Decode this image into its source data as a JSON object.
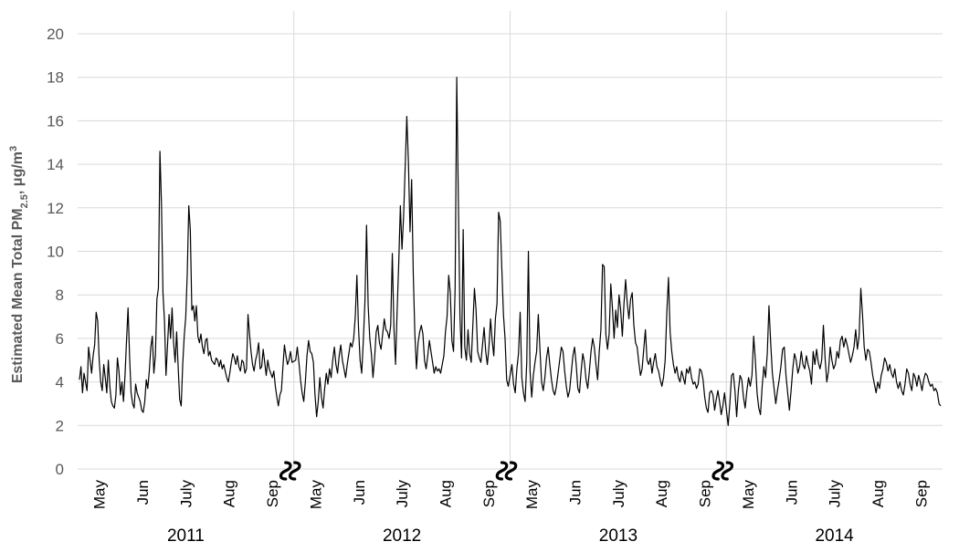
{
  "chart_data": {
    "type": "line",
    "title": "",
    "ylabel_prefix": "Estimated Mean Total PM",
    "ylabel_subscript": "2.5",
    "ylabel_unit": ", μg/m",
    "ylabel_superscript": "3",
    "ylim": [
      0,
      20
    ],
    "yticks": [
      0,
      2,
      4,
      6,
      8,
      10,
      12,
      14,
      16,
      18,
      20
    ],
    "grid": "horizontal",
    "legend": "none",
    "series_color": "#000000",
    "segments": [
      {
        "year": "2011",
        "months": [
          "May",
          "Jun",
          "July",
          "Aug",
          "Sep"
        ],
        "values": [
          4.1,
          4.7,
          3.5,
          4.4,
          4.0,
          3.6,
          5.6,
          5.0,
          4.4,
          5.2,
          5.7,
          7.2,
          6.8,
          5.0,
          4.0,
          3.6,
          4.8,
          4.2,
          3.5,
          5.0,
          3.8,
          3.1,
          2.9,
          2.8,
          3.4,
          5.1,
          4.5,
          3.4,
          4.0,
          3.1,
          4.3,
          5.9,
          7.4,
          5.2,
          3.5,
          3.0,
          2.8,
          3.9,
          3.5,
          3.3,
          3.1,
          2.7,
          2.6,
          3.1,
          4.1,
          3.7,
          4.5,
          5.6,
          6.1,
          4.4,
          5.2,
          7.8,
          8.3,
          14.6,
          12.2,
          8.1,
          6.8,
          4.3,
          5.7,
          7.1,
          6.0,
          7.4,
          5.8,
          4.9,
          6.3,
          4.7,
          3.2,
          2.9,
          4.8,
          6.1,
          7.0,
          9.0,
          12.1,
          11.0,
          7.3,
          7.5,
          6.8,
          7.5,
          6.1,
          5.8,
          6.2,
          5.6,
          5.3,
          5.9,
          6.0,
          5.2,
          5.4,
          5.0,
          4.9,
          4.8,
          5.1,
          5.0,
          4.7,
          5.0,
          4.6,
          4.8,
          4.5,
          4.2,
          4.0,
          4.4,
          4.9,
          5.3,
          5.1,
          4.8,
          5.2,
          4.7,
          4.5,
          5.0,
          4.9,
          4.4,
          4.6,
          7.1,
          6.2,
          5.4,
          4.8,
          4.5,
          5.0,
          5.3,
          5.8,
          4.6,
          4.7,
          5.5,
          4.9,
          4.3,
          5.0,
          4.6,
          4.4,
          4.2,
          4.5,
          3.8,
          3.3,
          2.9,
          3.4,
          3.6,
          4.7,
          5.7,
          5.2,
          4.8,
          5.0,
          5.4,
          4.9
        ]
      },
      {
        "year": "2012",
        "months": [
          "May",
          "Jun",
          "July",
          "Aug",
          "Sep"
        ],
        "values": [
          5.0,
          5.6,
          4.9,
          4.1,
          3.5,
          3.1,
          4.0,
          5.2,
          5.9,
          5.4,
          5.3,
          4.9,
          3.4,
          2.4,
          3.1,
          4.2,
          3.3,
          2.8,
          3.7,
          4.4,
          3.9,
          4.6,
          4.2,
          5.0,
          5.6,
          4.8,
          4.4,
          5.2,
          5.7,
          5.0,
          4.6,
          4.2,
          4.8,
          5.3,
          5.8,
          5.6,
          6.0,
          7.0,
          8.9,
          6.5,
          5.0,
          4.4,
          5.9,
          7.7,
          11.2,
          7.5,
          6.0,
          5.3,
          4.2,
          5.1,
          6.3,
          6.6,
          5.8,
          5.5,
          6.2,
          6.9,
          6.4,
          6.3,
          6.0,
          6.6,
          9.9,
          6.5,
          4.8,
          7.3,
          9.5,
          12.1,
          10.1,
          11.6,
          13.9,
          16.2,
          14.1,
          10.9,
          13.3,
          9.0,
          6.2,
          4.6,
          5.8,
          6.3,
          6.6,
          6.2,
          5.0,
          4.6,
          5.2,
          5.9,
          5.4,
          4.9,
          4.4,
          4.7,
          4.5,
          4.6,
          4.4,
          4.8,
          5.2,
          6.3,
          7.0,
          8.9,
          8.1,
          5.9,
          5.4,
          8.3,
          18.0,
          12.4,
          7.0,
          5.1,
          11.0,
          5.6,
          5.0,
          6.4,
          5.3,
          4.9,
          6.6,
          8.3,
          7.3,
          5.4,
          5.1,
          4.9,
          5.7,
          6.5,
          5.4,
          4.8,
          5.6,
          6.9,
          5.9,
          5.2,
          6.9,
          7.6,
          11.8,
          11.4,
          9.2,
          7.1,
          6.0,
          4.1,
          3.8
        ]
      },
      {
        "year": "2013",
        "months": [
          "May",
          "Jun",
          "July",
          "Aug",
          "Sep"
        ],
        "values": [
          4.8,
          3.9,
          3.5,
          4.6,
          5.3,
          7.2,
          4.2,
          3.5,
          3.1,
          4.9,
          10.0,
          4.5,
          3.3,
          4.3,
          4.9,
          5.4,
          7.1,
          5.5,
          4.0,
          3.6,
          4.2,
          5.1,
          5.6,
          4.8,
          4.1,
          3.6,
          3.4,
          3.8,
          4.4,
          5.0,
          5.6,
          5.4,
          4.5,
          3.8,
          3.3,
          3.6,
          4.4,
          5.2,
          5.6,
          4.8,
          3.7,
          3.5,
          4.5,
          5.3,
          4.9,
          4.1,
          3.7,
          4.5,
          5.4,
          6.0,
          5.6,
          4.8,
          4.1,
          5.4,
          6.4,
          9.4,
          9.3,
          6.2,
          5.5,
          6.2,
          8.5,
          7.4,
          6.0,
          7.3,
          6.5,
          8.0,
          7.3,
          6.1,
          7.6,
          8.7,
          7.6,
          6.9,
          7.8,
          8.1,
          6.6,
          5.8,
          5.6,
          4.9,
          4.3,
          4.6,
          5.5,
          6.4,
          5.0,
          4.8,
          5.1,
          4.4,
          4.9,
          5.3,
          4.7,
          4.5,
          4.1,
          3.8,
          4.2,
          5.0,
          7.2,
          8.8,
          6.3,
          5.4,
          4.8,
          4.4,
          4.7,
          4.2,
          4.0,
          4.5,
          4.2,
          3.9,
          4.6,
          4.4,
          4.7,
          4.2,
          3.9,
          4.0,
          3.7,
          3.9,
          4.6,
          4.5,
          4.1,
          3.3,
          2.8,
          2.6,
          3.5,
          3.6,
          3.4,
          2.7,
          3.2,
          3.6,
          3.1,
          2.5,
          2.9,
          3.5
        ]
      },
      {
        "year": "2014",
        "months": [
          "May",
          "Jun",
          "July",
          "Aug",
          "Sep"
        ],
        "values": [
          2.0,
          3.0,
          4.3,
          4.4,
          3.6,
          2.4,
          3.6,
          4.3,
          4.1,
          3.3,
          2.8,
          3.6,
          4.2,
          3.8,
          4.3,
          6.1,
          5.0,
          3.5,
          2.8,
          2.5,
          3.8,
          4.7,
          4.2,
          5.3,
          7.5,
          5.8,
          4.4,
          3.7,
          3.0,
          3.6,
          4.1,
          4.7,
          5.5,
          5.6,
          4.3,
          3.5,
          2.7,
          3.6,
          4.6,
          5.3,
          5.0,
          4.4,
          4.7,
          5.4,
          4.8,
          4.6,
          5.2,
          4.8,
          4.5,
          3.9,
          5.4,
          4.8,
          5.5,
          4.9,
          4.6,
          5.0,
          6.6,
          5.1,
          4.0,
          4.5,
          5.6,
          5.0,
          4.6,
          4.8,
          5.4,
          5.1,
          5.9,
          6.1,
          5.6,
          6.0,
          5.7,
          5.3,
          4.9,
          5.2,
          5.6,
          6.4,
          5.5,
          6.1,
          8.3,
          7.1,
          5.6,
          5.0,
          5.5,
          5.4,
          4.9,
          4.3,
          3.9,
          3.5,
          4.0,
          3.7,
          4.3,
          4.6,
          5.1,
          4.9,
          4.5,
          4.8,
          4.4,
          4.2,
          4.6,
          4.0,
          3.7,
          4.0,
          3.6,
          3.4,
          3.9,
          4.6,
          4.4,
          3.9,
          3.6,
          4.4,
          4.2,
          3.8,
          4.3,
          4.0,
          3.6,
          4.1,
          4.4,
          4.3,
          4.0,
          3.8,
          3.9,
          3.6,
          3.7,
          3.5,
          3.0,
          2.9
        ]
      }
    ]
  }
}
